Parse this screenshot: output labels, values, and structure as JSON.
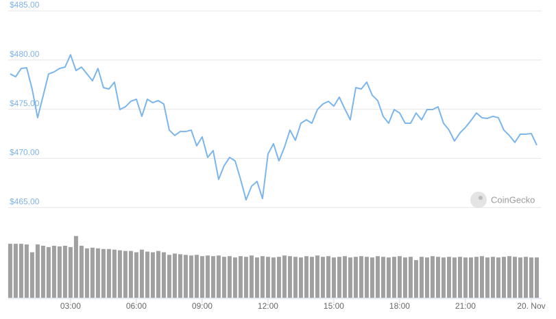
{
  "chart_data": {
    "type": "line",
    "watermark": "CoinGecko",
    "x": [
      0.25,
      0.5,
      0.75,
      1,
      1.25,
      1.5,
      1.75,
      2,
      2.25,
      2.5,
      2.75,
      3,
      3.25,
      3.5,
      3.75,
      4,
      4.25,
      4.5,
      4.75,
      5,
      5.25,
      5.5,
      5.75,
      6,
      6.25,
      6.5,
      6.75,
      7,
      7.25,
      7.5,
      7.75,
      8,
      8.25,
      8.5,
      8.75,
      9,
      9.25,
      9.5,
      9.75,
      10,
      10.25,
      10.5,
      10.75,
      11,
      11.25,
      11.5,
      11.75,
      12,
      12.25,
      12.5,
      12.75,
      13,
      13.25,
      13.5,
      13.75,
      14,
      14.25,
      14.5,
      14.75,
      15,
      15.25,
      15.5,
      15.75,
      16,
      16.25,
      16.5,
      16.75,
      17,
      17.25,
      17.5,
      17.75,
      18,
      18.25,
      18.5,
      18.75,
      19,
      19.25,
      19.5,
      19.75,
      20,
      20.25,
      20.5,
      20.75,
      21,
      21.25,
      21.5,
      21.75,
      22,
      22.25,
      22.5,
      22.75,
      23,
      23.25,
      23.5,
      23.75,
      24,
      24.25
    ],
    "series": [
      {
        "color": "#7cb5ec",
        "values": [
          478.59,
          478.31,
          479.15,
          479.22,
          477.06,
          474.14,
          476.36,
          478.59,
          478.8,
          479.15,
          479.29,
          480.54,
          478.94,
          479.29,
          478.59,
          477.9,
          479.15,
          477.2,
          477.06,
          477.76,
          474.97,
          475.25,
          475.81,
          476.02,
          474.28,
          476.02,
          475.67,
          475.88,
          475.53,
          472.88,
          472.33,
          472.74,
          472.74,
          472.88,
          471.28,
          472.19,
          470.1,
          470.79,
          467.87,
          469.26,
          470.1,
          469.75,
          467.87,
          465.78,
          467.17,
          467.66,
          465.92,
          470.45,
          471.49,
          469.75,
          471.14,
          472.88,
          471.84,
          473.58,
          473.93,
          473.58,
          474.97,
          475.53,
          475.81,
          475.32,
          476.23,
          475.04,
          473.93,
          477.2,
          477.06,
          477.76,
          476.43,
          475.88,
          474.28,
          473.58,
          474.97,
          474.62,
          473.58,
          473.58,
          474.62,
          473.93,
          474.97,
          474.97,
          475.25,
          473.58,
          472.88,
          471.77,
          472.6,
          473.16,
          473.86,
          474.62,
          474.14,
          474.07,
          474.28,
          474.14,
          472.88,
          472.33,
          471.63,
          472.47,
          472.47,
          472.53,
          471.35
        ]
      },
      {
        "type": "bar",
        "axis": "y2",
        "color": "#a0a0a0",
        "values": [
          83,
          83,
          83,
          82,
          70,
          82,
          80,
          78,
          80,
          79,
          80,
          78,
          95,
          80,
          76,
          77,
          76,
          75,
          75,
          74,
          73,
          72,
          72,
          70,
          74,
          71,
          70,
          72,
          70,
          66,
          68,
          67,
          66,
          65,
          66,
          64,
          65,
          64,
          65,
          63,
          64,
          62,
          64,
          63,
          65,
          62,
          64,
          63,
          62,
          63,
          65,
          64,
          63,
          62,
          64,
          63,
          65,
          63,
          64,
          62,
          63,
          64,
          62,
          63,
          64,
          63,
          62,
          64,
          63,
          62,
          63,
          64,
          62,
          63,
          58,
          63,
          62,
          64,
          63,
          62,
          63,
          62,
          63,
          62,
          62,
          63,
          64,
          62,
          63,
          62,
          63,
          64,
          63,
          62,
          63,
          62,
          62
        ]
      }
    ],
    "xlim": [
      0.16,
      24.47
    ],
    "xticks": [
      {
        "value": 3,
        "label": "03:00"
      },
      {
        "value": 6,
        "label": "06:00"
      },
      {
        "value": 9,
        "label": "09:00"
      },
      {
        "value": 12,
        "label": "12:00"
      },
      {
        "value": 15,
        "label": "15:00"
      },
      {
        "value": 18,
        "label": "18:00"
      },
      {
        "value": 21,
        "label": "21:00"
      },
      {
        "value": 24,
        "label": "20. Nov"
      }
    ],
    "ylim": [
      464.5,
      485
    ],
    "yticks": [
      {
        "value": 465,
        "label": "$465.00"
      },
      {
        "value": 470,
        "label": "$470.00"
      },
      {
        "value": 475,
        "label": "$475.00"
      },
      {
        "value": 480,
        "label": "$480.00"
      },
      {
        "value": 485,
        "label": "$485.00"
      }
    ],
    "y2lim": [
      0,
      100
    ],
    "grid": true
  }
}
